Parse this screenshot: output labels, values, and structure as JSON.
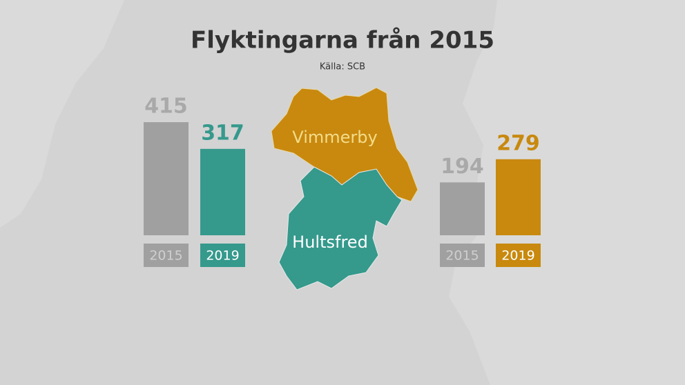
{
  "title": "Flyktingarna från 2015",
  "source": "Källa: SCB",
  "chart_data": [
    {
      "type": "bar",
      "region": "Hultsfred",
      "categories": [
        "2015",
        "2019"
      ],
      "values": [
        415,
        317
      ],
      "colors": [
        "#a0a0a0",
        "#35998c"
      ],
      "label_colors": [
        "#a9a9a9",
        "#35998c"
      ]
    },
    {
      "type": "bar",
      "region": "Vimmerby",
      "categories": [
        "2015",
        "2019"
      ],
      "values": [
        194,
        279
      ],
      "colors": [
        "#a0a0a0",
        "#c8890e"
      ],
      "label_colors": [
        "#a9a9a9",
        "#c8890e"
      ]
    }
  ]
}
